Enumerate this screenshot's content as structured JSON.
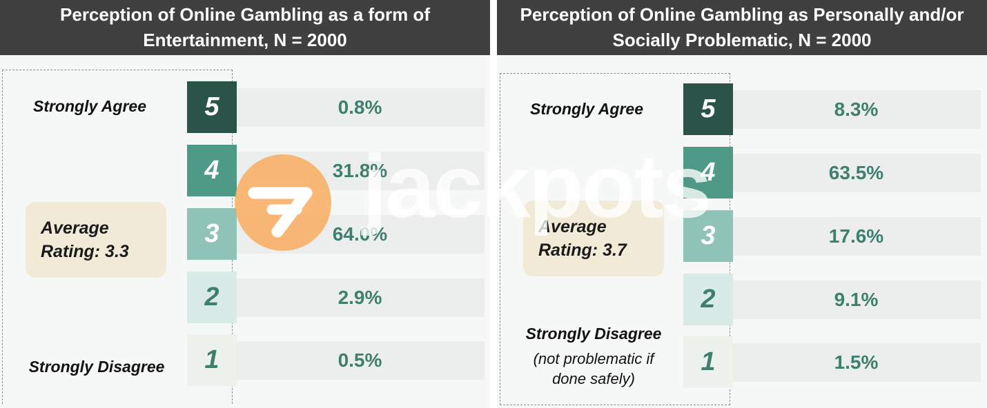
{
  "chart_data": [
    {
      "type": "table",
      "title": "Perception of Online Gambling as a form of Entertainment, N = 2000",
      "categories": [
        "5",
        "4",
        "3",
        "2",
        "1"
      ],
      "values": [
        "0.8%",
        "31.8%",
        "64.0%",
        "2.9%",
        "0.5%"
      ],
      "top_label": "Strongly Agree",
      "bottom_label": "Strongly Disagree",
      "bottom_note": "",
      "average_line1": "Average",
      "average_line2": "Rating: 3.3"
    },
    {
      "type": "table",
      "title": "Perception of Online Gambling as Personally and/or Socially Problematic, N = 2000",
      "categories": [
        "5",
        "4",
        "3",
        "2",
        "1"
      ],
      "values": [
        "8.3%",
        "63.5%",
        "17.6%",
        "9.1%",
        "1.5%"
      ],
      "top_label": "Strongly Agree",
      "bottom_label": "Strongly Disagree",
      "bottom_note": "(not problematic if done safely)",
      "average_line1": "Average",
      "average_line2": "Rating: 3.7"
    }
  ],
  "colors": {
    "rating_5": "#2b5448",
    "rating_4": "#4e9a86",
    "rating_3": "#90c3b7",
    "rating_2": "#d9ebe6",
    "rating_1": "#edf3ec",
    "header_bg": "#404040",
    "value_text": "#3e7f6d",
    "average_bg": "#f1ead7"
  },
  "watermark": {
    "text": "jackpots",
    "icon": "jackpots-logo-icon"
  }
}
